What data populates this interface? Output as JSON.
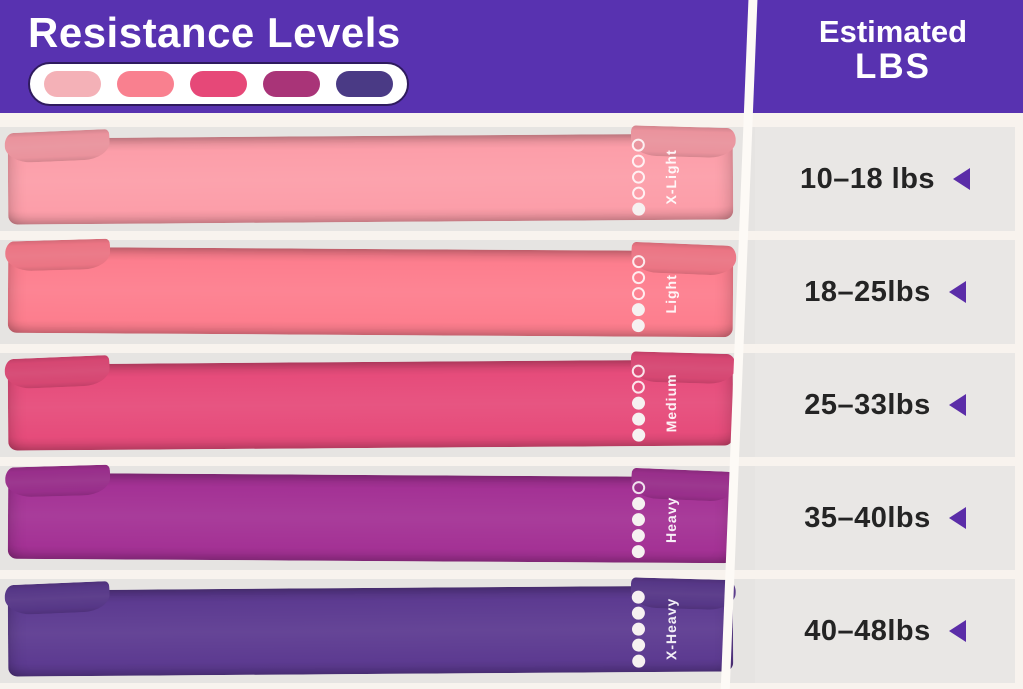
{
  "header": {
    "title": "Resistance Levels",
    "estimated_line1": "Estimated",
    "estimated_line2": "LBS",
    "legend_swatches": [
      "#f4b1b7",
      "#f9808f",
      "#e64878",
      "#a93478",
      "#4a3a85"
    ]
  },
  "colors": {
    "header_bg": "#5832b0",
    "page_bg": "#f8f3ee",
    "panel_bg": "#e6e4e2",
    "panel_bg_right": "#e9e7e5",
    "stripe": "#fdfaf6",
    "arrow": "#5b2da8",
    "text_dark": "#242424",
    "legend_border": "#2f1b5e"
  },
  "rows": [
    {
      "level": "X-Light",
      "band_color": "#fc9ea9",
      "filled_dots": 1,
      "total_dots": 5,
      "lbs": "10–18 lbs"
    },
    {
      "level": "Light",
      "band_color": "#fd7e8e",
      "filled_dots": 2,
      "total_dots": 5,
      "lbs": "18–25lbs"
    },
    {
      "level": "Medium",
      "band_color": "#e64c7b",
      "filled_dots": 3,
      "total_dots": 5,
      "lbs": "25–33lbs"
    },
    {
      "level": "Heavy",
      "band_color": "#a43295",
      "filled_dots": 4,
      "total_dots": 5,
      "lbs": "35–40lbs"
    },
    {
      "level": "X-Heavy",
      "band_color": "#5d3b91",
      "filled_dots": 5,
      "total_dots": 5,
      "lbs": "40–48lbs"
    }
  ]
}
